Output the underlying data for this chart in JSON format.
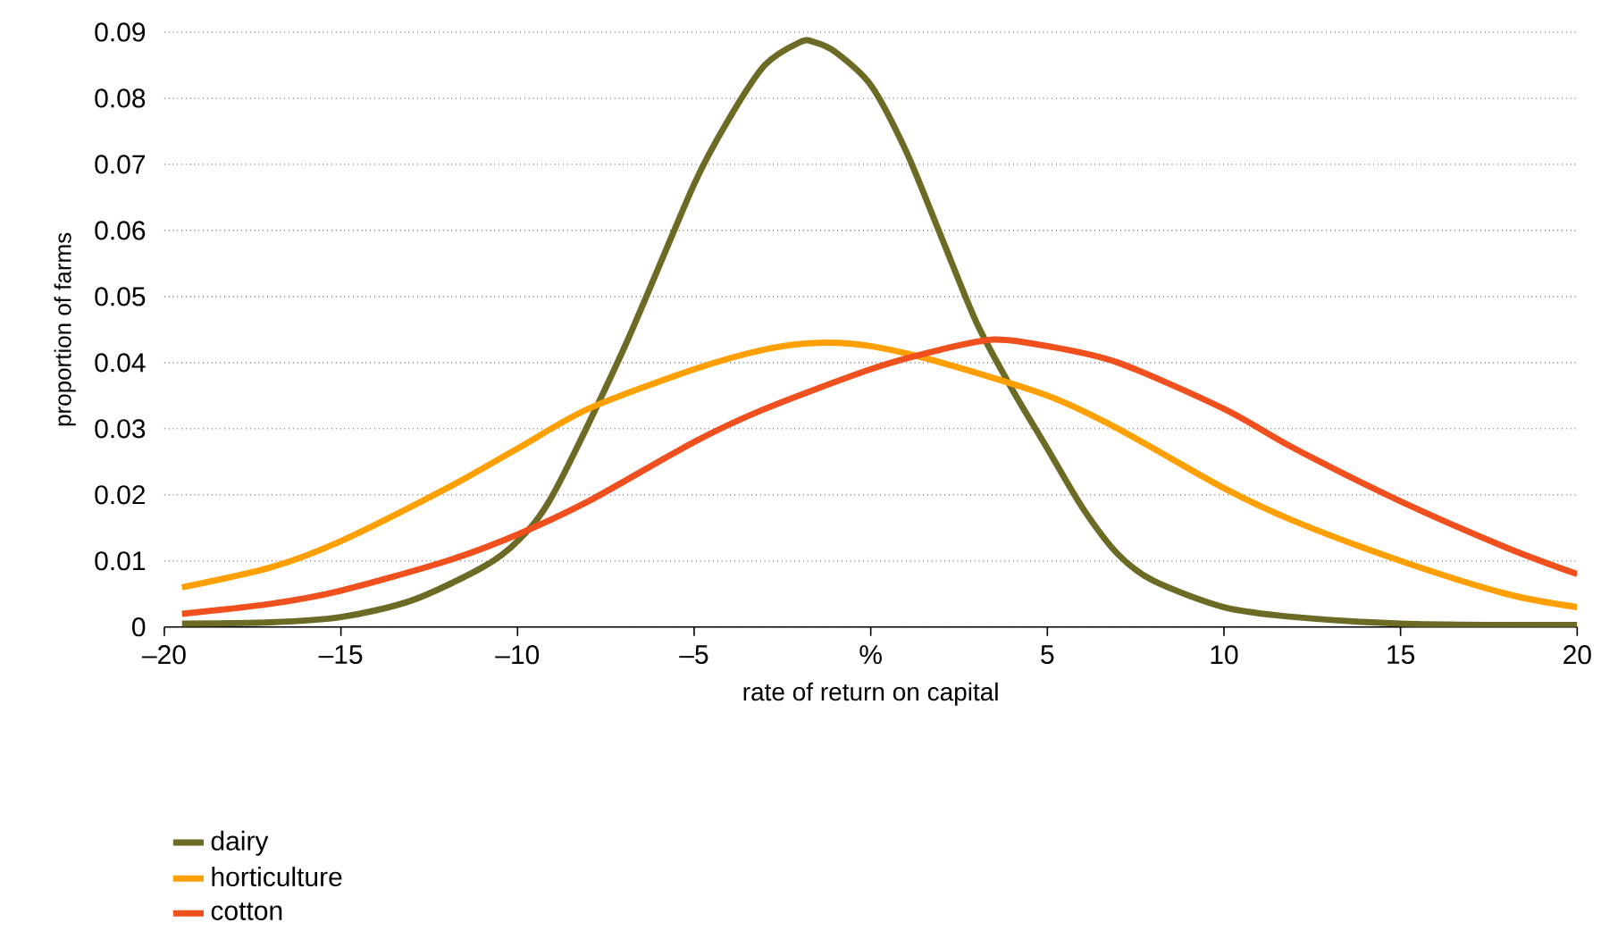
{
  "chart_data": {
    "type": "line",
    "xlabel": "rate of return on capital",
    "ylabel": "proportion of farms",
    "xlim": [
      -20,
      20
    ],
    "ylim": [
      0,
      0.09
    ],
    "xticks": [
      {
        "value": -20,
        "label": "–20"
      },
      {
        "value": -15,
        "label": "–15"
      },
      {
        "value": -10,
        "label": "–10"
      },
      {
        "value": -5,
        "label": "–5"
      },
      {
        "value": 0,
        "label": "%"
      },
      5,
      10,
      15,
      20
    ],
    "yticks": [
      0,
      0.01,
      0.02,
      0.03,
      0.04,
      0.05,
      0.06,
      0.07,
      0.08,
      0.09
    ],
    "grid": "y",
    "legend": "bottom left",
    "marker": "none",
    "line_style": "solid",
    "series": [
      {
        "name": "dairy",
        "color": "#6b6b26",
        "x": [
          -19.5,
          -17,
          -15,
          -13,
          -11,
          -10,
          -9,
          -7,
          -5,
          -4,
          -3,
          -2,
          -1.6,
          -1,
          0,
          1,
          2,
          3,
          4,
          5,
          6,
          7,
          8,
          10,
          12,
          15,
          18,
          20
        ],
        "values": [
          0.0005,
          0.0007,
          0.0015,
          0.004,
          0.009,
          0.013,
          0.02,
          0.042,
          0.067,
          0.077,
          0.085,
          0.0885,
          0.0885,
          0.087,
          0.082,
          0.072,
          0.059,
          0.046,
          0.036,
          0.027,
          0.018,
          0.011,
          0.007,
          0.003,
          0.0015,
          0.0005,
          0.0003,
          0.0003
        ]
      },
      {
        "name": "horticulture",
        "color": "#ffa000",
        "x": [
          -19.5,
          -17,
          -15,
          -12,
          -10,
          -8,
          -5,
          -3,
          -1.5,
          0,
          2,
          5,
          7,
          10,
          12,
          15,
          18,
          20
        ],
        "values": [
          0.006,
          0.009,
          0.013,
          0.021,
          0.027,
          0.033,
          0.039,
          0.042,
          0.043,
          0.0425,
          0.04,
          0.035,
          0.03,
          0.021,
          0.016,
          0.01,
          0.005,
          0.003
        ]
      },
      {
        "name": "cotton",
        "color": "#f0501e",
        "x": [
          -19.5,
          -17,
          -15,
          -12,
          -10,
          -8,
          -5,
          -3,
          0,
          2,
          3.5,
          5,
          7,
          10,
          12,
          15,
          18,
          20
        ],
        "values": [
          0.002,
          0.0035,
          0.0055,
          0.01,
          0.014,
          0.019,
          0.028,
          0.033,
          0.039,
          0.042,
          0.0435,
          0.0425,
          0.04,
          0.033,
          0.027,
          0.019,
          0.012,
          0.008
        ]
      }
    ]
  }
}
